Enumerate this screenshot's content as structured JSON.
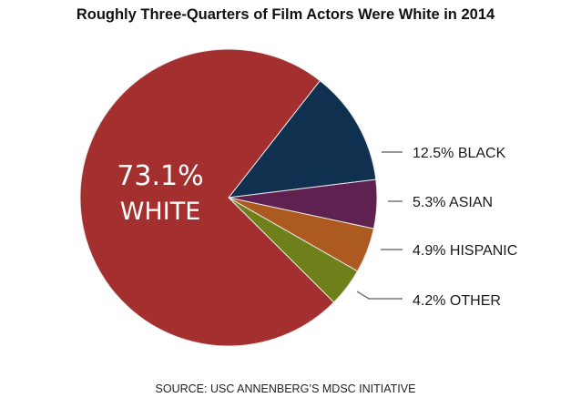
{
  "chart_data": {
    "type": "pie",
    "title": "Roughly Three-Quarters of Film Actors Were White in 2014",
    "slices": [
      {
        "label": "WHITE",
        "value": 73.1,
        "display": "73.1%",
        "color": "#a3302f"
      },
      {
        "label": "BLACK",
        "value": 12.5,
        "display": "12.5% BLACK",
        "color": "#10304f"
      },
      {
        "label": "ASIAN",
        "value": 5.3,
        "display": "5.3% ASIAN",
        "color": "#5e2150"
      },
      {
        "label": "HISPANIC",
        "value": 4.9,
        "display": "4.9% HISPANIC",
        "color": "#ac5a1f"
      },
      {
        "label": "OTHER",
        "value": 4.2,
        "display": "4.2% OTHER",
        "color": "#6f7f1a"
      }
    ],
    "source": "SOURCE: USC ANNENBERG’S MDSC INITIATIVE"
  }
}
